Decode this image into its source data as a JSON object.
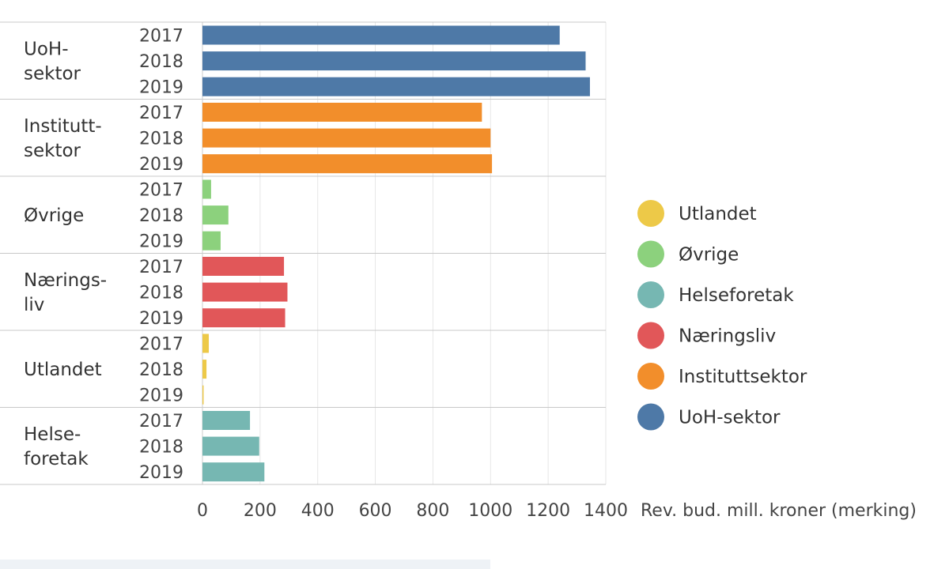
{
  "chart_data": {
    "type": "bar",
    "orientation": "horizontal",
    "title": "",
    "xlabel": "Rev. bud. mill. kroner (merking)",
    "xlim": [
      0,
      1400
    ],
    "xticks": [
      "0",
      "200",
      "400",
      "600",
      "800",
      "1000",
      "1200",
      "1400"
    ],
    "grid": true,
    "legend_position": "right",
    "groups": [
      {
        "label_lines": [
          "UoH-",
          "sektor"
        ],
        "sector": "UoH-sektor",
        "color": "#4e79a7",
        "bars": [
          {
            "year": "2017",
            "value": 1240
          },
          {
            "year": "2018",
            "value": 1330
          },
          {
            "year": "2019",
            "value": 1345
          }
        ]
      },
      {
        "label_lines": [
          "Institutt-",
          "sektor"
        ],
        "sector": "Instituttsektor",
        "color": "#f28e2b",
        "bars": [
          {
            "year": "2017",
            "value": 970
          },
          {
            "year": "2018",
            "value": 1000
          },
          {
            "year": "2019",
            "value": 1005
          }
        ]
      },
      {
        "label_lines": [
          "Øvrige"
        ],
        "sector": "Øvrige",
        "color": "#8cd17d",
        "bars": [
          {
            "year": "2017",
            "value": 30
          },
          {
            "year": "2018",
            "value": 90
          },
          {
            "year": "2019",
            "value": 63
          }
        ]
      },
      {
        "label_lines": [
          "Nærings-",
          "liv"
        ],
        "sector": "Næringsliv",
        "color": "#e15759",
        "bars": [
          {
            "year": "2017",
            "value": 283
          },
          {
            "year": "2018",
            "value": 295
          },
          {
            "year": "2019",
            "value": 287
          }
        ]
      },
      {
        "label_lines": [
          "Utlandet"
        ],
        "sector": "Utlandet",
        "color": "#edc948",
        "bars": [
          {
            "year": "2017",
            "value": 22
          },
          {
            "year": "2018",
            "value": 14
          },
          {
            "year": "2019",
            "value": 4
          }
        ]
      },
      {
        "label_lines": [
          "Helse-",
          "foretak"
        ],
        "sector": "Helseforetak",
        "color": "#76b7b2",
        "bars": [
          {
            "year": "2017",
            "value": 165
          },
          {
            "year": "2018",
            "value": 197
          },
          {
            "year": "2019",
            "value": 215
          }
        ]
      }
    ],
    "legend": [
      {
        "label": "Utlandet",
        "color": "#edc948"
      },
      {
        "label": "Øvrige",
        "color": "#8cd17d"
      },
      {
        "label": "Helseforetak",
        "color": "#76b7b2"
      },
      {
        "label": "Næringsliv",
        "color": "#e15759"
      },
      {
        "label": "Instituttsektor",
        "color": "#f28e2b"
      },
      {
        "label": "UoH-sektor",
        "color": "#4e79a7"
      }
    ]
  }
}
